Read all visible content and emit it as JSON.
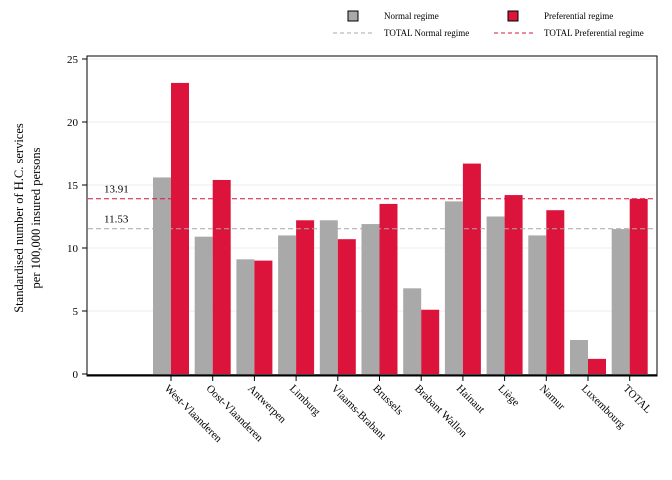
{
  "chart_data": {
    "type": "bar",
    "ylabel_lines": [
      "Standardised number of H.C. services",
      "per 100,000 insured persons"
    ],
    "categories": [
      "West-Vlaanderen",
      "Oost-Vlaanderen",
      "Antwerpen",
      "Limburg",
      "Vlaams-Brabant",
      "Brussels",
      "Brabant Wallon",
      "Hainaut",
      "Liège",
      "Namur",
      "Luxembourg",
      "TOTAL"
    ],
    "series": [
      {
        "name": "Normal regime",
        "color": "#a9a9a9",
        "values": [
          15.6,
          10.9,
          9.1,
          11.0,
          12.2,
          11.9,
          6.8,
          13.7,
          12.5,
          11.0,
          2.7,
          11.5
        ]
      },
      {
        "name": "Preferential regime",
        "color": "#dc143c",
        "values": [
          23.1,
          15.4,
          9.0,
          12.2,
          10.7,
          13.5,
          5.1,
          16.7,
          14.2,
          13.0,
          1.2,
          13.9
        ]
      }
    ],
    "reference_lines": [
      {
        "name": "TOTAL Normal regime",
        "value": 11.53,
        "label": "11.53",
        "color": "#a9a9a9",
        "dash": "dashed"
      },
      {
        "name": "TOTAL Preferential regime",
        "value": 13.91,
        "label": "13.91",
        "color": "#dc143c",
        "dash": "dashed"
      }
    ],
    "ylim": [
      0,
      25
    ],
    "yticks": [
      "0",
      "5",
      "10",
      "15",
      "20",
      "25"
    ],
    "grid": "horizontal",
    "legend_position": "top"
  }
}
